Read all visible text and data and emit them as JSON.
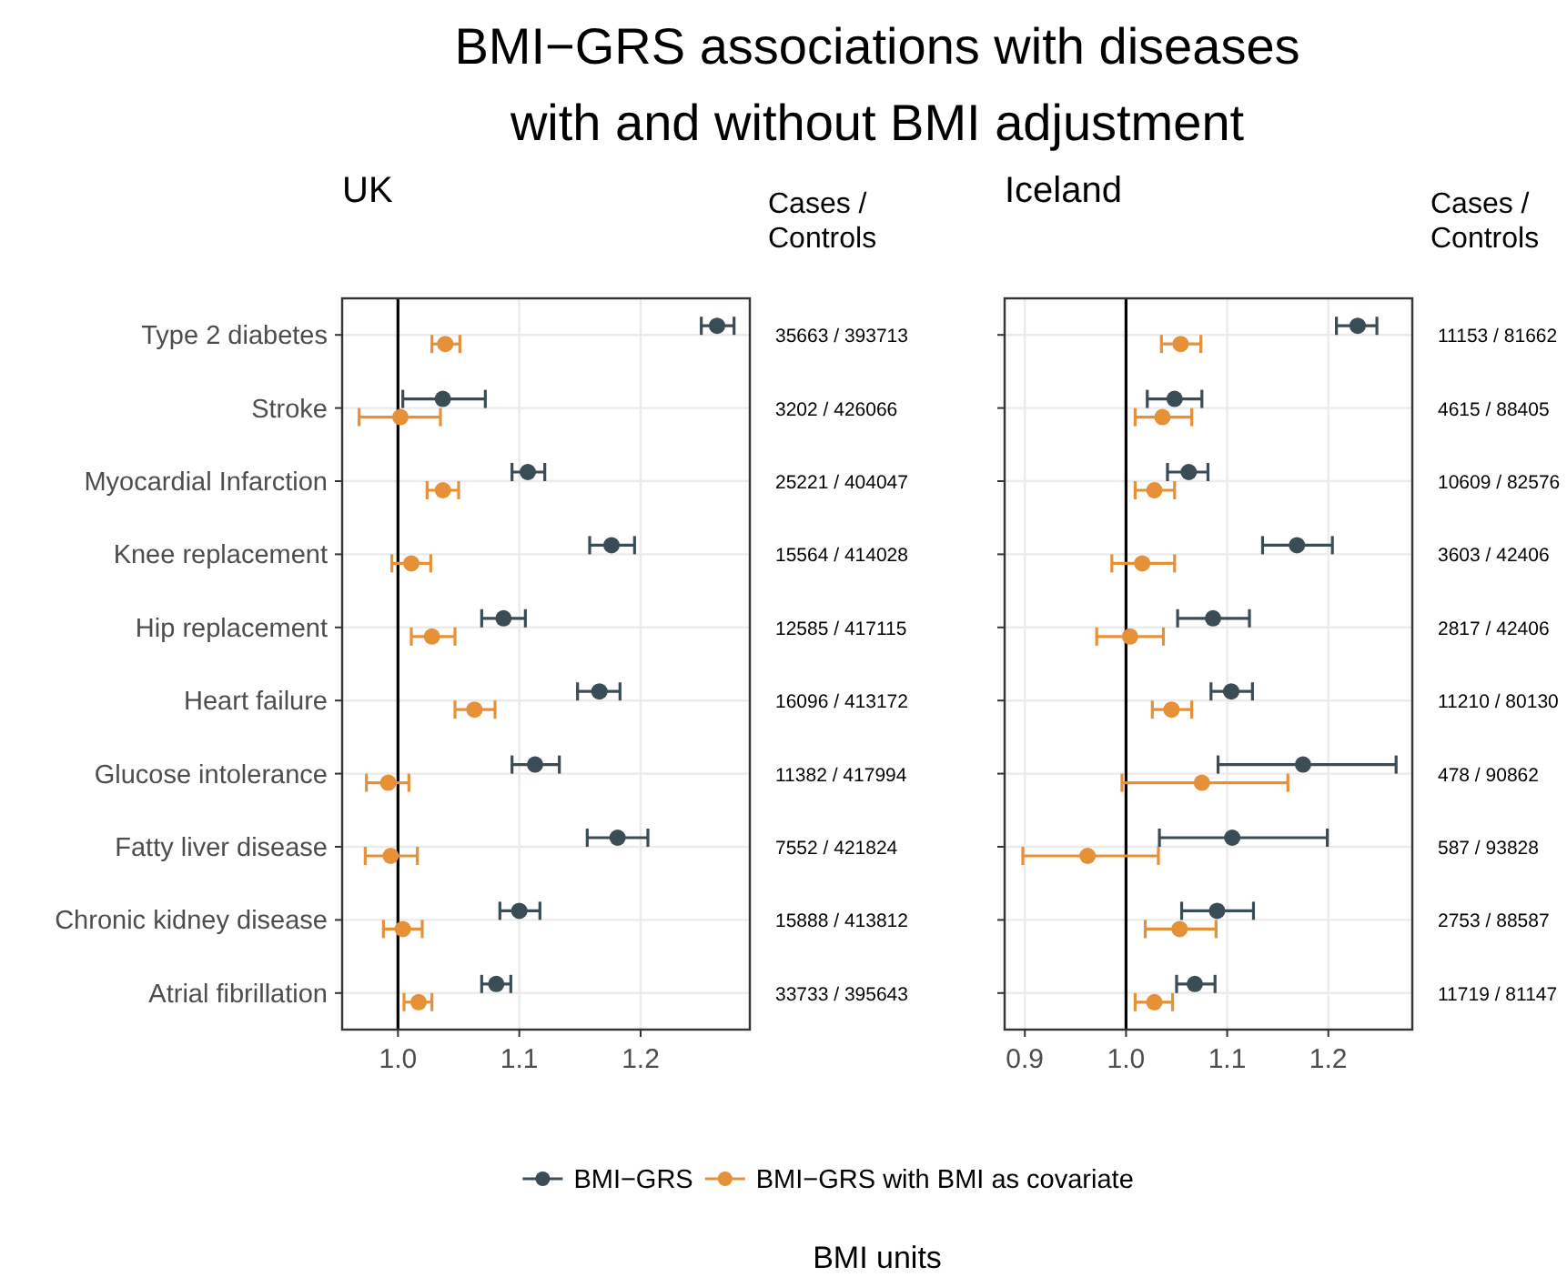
{
  "chart_data": [
    {
      "type": "scatter",
      "orientation": "horizontal",
      "title": "BMI−GRS associations with diseases with and without BMI adjustment",
      "subtitle": "UK",
      "xlabel": "BMI units",
      "categories": [
        "Type 2 diabetes",
        "Stroke",
        "Myocardial Infarction",
        "Knee replacement",
        "Hip replacement",
        "Heart failure",
        "Glucose intolerance",
        "Fatty liver disease",
        "Chronic kidney disease",
        "Atrial fibrillation"
      ],
      "series": [
        {
          "name": "BMI−GRS",
          "color": "#3a4d56",
          "values": [
            1.263,
            1.037,
            1.107,
            1.176,
            1.087,
            1.166,
            1.113,
            1.181,
            1.1,
            1.081
          ],
          "errors": [
            [
              1.25,
              1.277
            ],
            [
              1.004,
              1.072
            ],
            [
              1.094,
              1.121
            ],
            [
              1.158,
              1.195
            ],
            [
              1.069,
              1.105
            ],
            [
              1.148,
              1.183
            ],
            [
              1.094,
              1.133
            ],
            [
              1.156,
              1.206
            ],
            [
              1.084,
              1.117
            ],
            [
              1.069,
              1.093
            ]
          ]
        },
        {
          "name": "BMI−GRS with BMI as covariate",
          "color": "#e69138",
          "values": [
            1.039,
            1.002,
            1.037,
            1.011,
            1.028,
            1.063,
            0.992,
            0.994,
            1.004,
            1.017
          ],
          "errors": [
            [
              1.028,
              1.051
            ],
            [
              0.968,
              1.035
            ],
            [
              1.024,
              1.05
            ],
            [
              0.995,
              1.027
            ],
            [
              1.011,
              1.047
            ],
            [
              1.047,
              1.08
            ],
            [
              0.974,
              1.009
            ],
            [
              0.973,
              1.016
            ],
            [
              0.988,
              1.02
            ],
            [
              1.005,
              1.028
            ]
          ]
        }
      ],
      "xlim": [
        0.954,
        1.29
      ],
      "xticks": [
        {
          "value": 1,
          "label": "1.0"
        },
        1.1,
        1.2
      ],
      "grid": true,
      "marker": "circle",
      "legend": "bottom",
      "ref_lines": [
        {
          "axis": "x",
          "value": 1,
          "color": "#000000"
        }
      ],
      "annotations": [
        "Cases / Controls",
        "35663 / 393713",
        "3202 / 426066",
        "25221 / 404047",
        "15564 / 414028",
        "12585 / 417115",
        "16096 / 413172",
        "11382 / 417994",
        "7552 / 421824",
        "15888 / 413812",
        "33733 / 395643"
      ]
    },
    {
      "type": "scatter",
      "orientation": "horizontal",
      "title": "Iceland",
      "categories": [
        null,
        null,
        null,
        null,
        null,
        null,
        null,
        null,
        null,
        null
      ],
      "tick_labels": "x",
      "series": [
        {
          "name": "BMI−GRS",
          "color": "#3a4d56",
          "values": [
            1.229,
            1.048,
            1.062,
            1.169,
            1.086,
            1.104,
            1.175,
            1.105,
            1.09,
            1.068
          ],
          "errors": [
            [
              1.208,
              1.248
            ],
            [
              1.021,
              1.075
            ],
            [
              1.041,
              1.081
            ],
            [
              1.135,
              1.204
            ],
            [
              1.051,
              1.122
            ],
            [
              1.084,
              1.125
            ],
            [
              1.091,
              1.267
            ],
            [
              1.033,
              1.199
            ],
            [
              1.055,
              1.126
            ],
            [
              1.05,
              1.088
            ]
          ]
        },
        {
          "name": "BMI−GRS with BMI as covariate",
          "color": "#e69138",
          "values": [
            1.054,
            1.036,
            1.028,
            1.016,
            1.004,
            1.045,
            1.075,
            0.962,
            1.053,
            1.028
          ],
          "errors": [
            [
              1.035,
              1.074
            ],
            [
              1.009,
              1.065
            ],
            [
              1.009,
              1.048
            ],
            [
              0.986,
              1.048
            ],
            [
              0.971,
              1.037
            ],
            [
              1.026,
              1.065
            ],
            [
              0.996,
              1.16
            ],
            [
              0.898,
              1.032
            ],
            [
              1.019,
              1.089
            ],
            [
              1.009,
              1.046
            ]
          ]
        }
      ],
      "xlim": [
        0.88,
        1.283
      ],
      "xticks": [
        0.9,
        {
          "value": 1,
          "label": "1.0"
        },
        1.1,
        1.2
      ],
      "grid": true,
      "marker": "circle",
      "ref_lines": [
        {
          "axis": "x",
          "value": 1,
          "color": "#000000"
        }
      ],
      "annotations": [
        "Cases / Controls",
        "11153 / 81662",
        "4615 / 88405",
        "10609 / 82576",
        "3603 / 42406",
        "2817 / 42406",
        "11210 / 80130",
        "478 / 90862",
        "587 / 93828",
        "2753 / 88587",
        "11719 / 81147"
      ]
    }
  ]
}
